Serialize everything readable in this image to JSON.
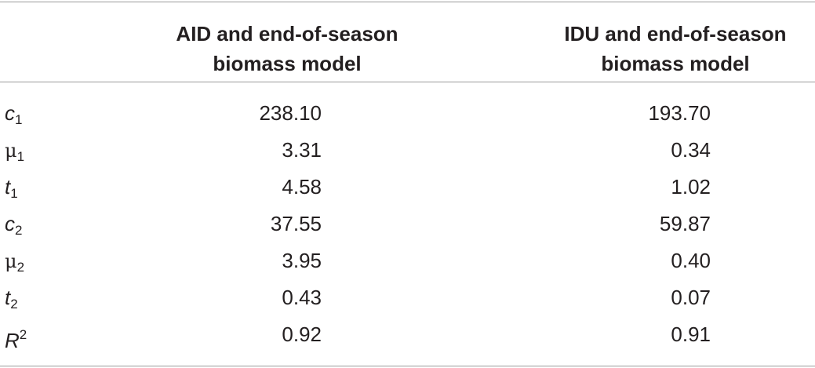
{
  "header": {
    "col1_line1": "AID and end-of-season",
    "col1_line2": "biomass model",
    "col2_line1": "IDU and end-of-season",
    "col2_line2": "biomass model"
  },
  "rows": [
    {
      "symbol": "c",
      "script": "1",
      "script_type": "sub",
      "italic": true,
      "aid": "238.10",
      "idu": "193.70"
    },
    {
      "symbol": "μ",
      "script": "1",
      "script_type": "sub",
      "italic": false,
      "aid": "3.31",
      "idu": "0.34"
    },
    {
      "symbol": "t",
      "script": "1",
      "script_type": "sub",
      "italic": true,
      "aid": "4.58",
      "idu": "1.02"
    },
    {
      "symbol": "c",
      "script": "2",
      "script_type": "sub",
      "italic": true,
      "aid": "37.55",
      "idu": "59.87"
    },
    {
      "symbol": "μ",
      "script": "2",
      "script_type": "sub",
      "italic": false,
      "aid": "3.95",
      "idu": "0.40"
    },
    {
      "symbol": "t",
      "script": "2",
      "script_type": "sub",
      "italic": true,
      "aid": "0.43",
      "idu": "0.07"
    },
    {
      "symbol": "R",
      "script": "2",
      "script_type": "sup",
      "italic": true,
      "aid": "0.92",
      "idu": "0.91"
    }
  ]
}
